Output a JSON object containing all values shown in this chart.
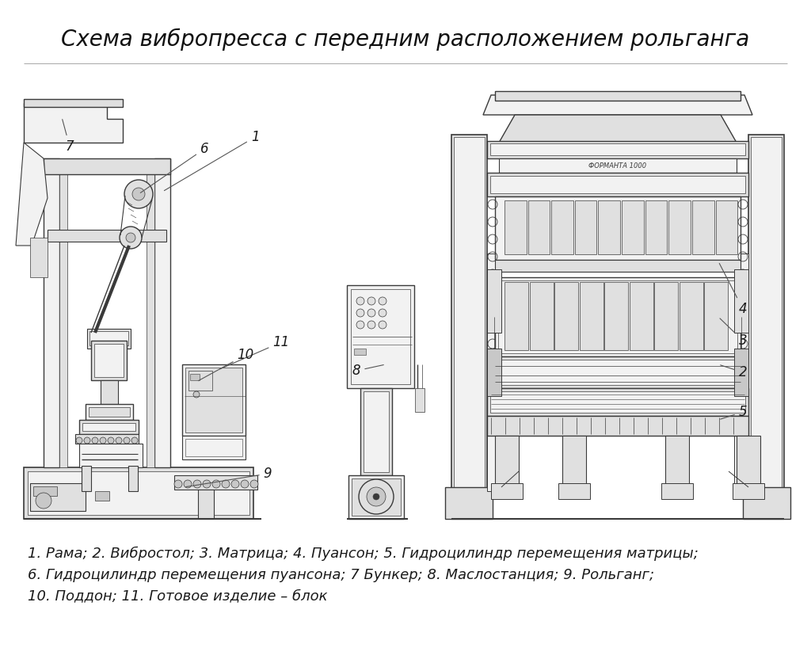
{
  "title": "Схема вибропресса с передним расположением рольганга",
  "title_fontsize": 20,
  "bg_color": "#ffffff",
  "line_color": "#3a3a3a",
  "fill_light": "#f2f2f2",
  "fill_mid": "#e0e0e0",
  "fill_dark": "#c8c8c8",
  "caption_line1": "1. Рама; 2. Вибростол; 3. Матрица; 4. Пуансон; 5. Гидроцилиндр перемещения матрицы;",
  "caption_line2": "6. Гидроцилиндр перемещения пуансона; 7 Бункер; 8. Маслостанция; 9. Рольганг;",
  "caption_line3": "10. Поддон; 11. Готовое изделие – блок",
  "caption_fontsize": 13
}
